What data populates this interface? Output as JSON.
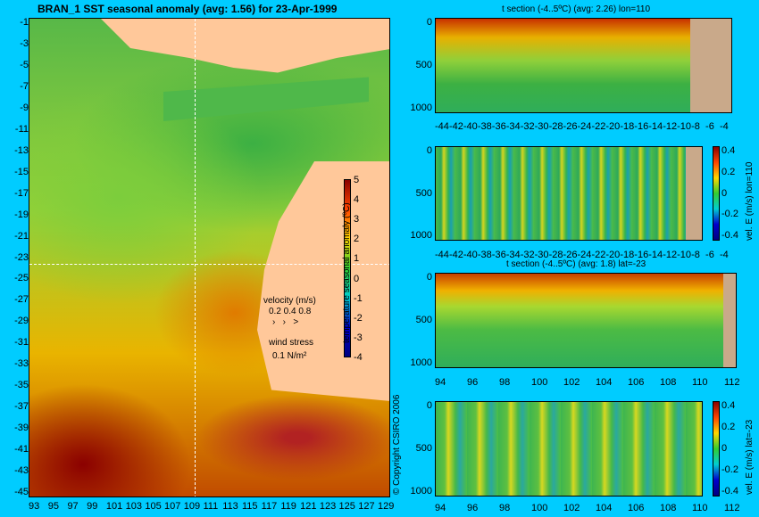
{
  "map": {
    "title": "BRAN_1 SST seasonal anomaly (avg: 1.56) for 23-Apr-1999",
    "lat_ticks": [
      "-1",
      "-3",
      "-5",
      "-7",
      "-9",
      "-11",
      "-13",
      "-15",
      "-17",
      "-19",
      "-21",
      "-23",
      "-25",
      "-27",
      "-29",
      "-31",
      "-33",
      "-35",
      "-37",
      "-39",
      "-41",
      "-43",
      "-45"
    ],
    "lon_ticks": [
      "93",
      "95",
      "97",
      "99",
      "101",
      "103",
      "105",
      "107",
      "109",
      "111",
      "113",
      "115",
      "117",
      "119",
      "121",
      "123",
      "125",
      "127",
      "129"
    ],
    "colorbar_ticks": [
      "5",
      "4",
      "3",
      "2",
      "1",
      "0",
      "-1",
      "-2",
      "-3",
      "-4"
    ],
    "colorbar_label": "temperature seasonal anomaly (ºC)",
    "velocity_label": "velocity (m/s)",
    "velocity_scale": "0.2 0.4 0.8",
    "wind_label": "wind stress",
    "wind_scale": "0.1 N/m²",
    "copyright": "© Copyright CSIRO 2006"
  },
  "panels": {
    "p1": {
      "title": "t section (-4..5ºC) (avg: 2.26) lon=110",
      "xticks": [
        "-44",
        "-42",
        "-40",
        "-38",
        "-36",
        "-34",
        "-32",
        "-30",
        "-28",
        "-26",
        "-24",
        "-22",
        "-20",
        "-18",
        "-16",
        "-14",
        "-12",
        "-10",
        "-8",
        "-6",
        "-4"
      ],
      "yticks": [
        "0",
        "500",
        "1000"
      ]
    },
    "p2": {
      "title": "",
      "xticks": [
        "-44",
        "-42",
        "-40",
        "-38",
        "-36",
        "-34",
        "-32",
        "-30",
        "-28",
        "-26",
        "-24",
        "-22",
        "-20",
        "-18",
        "-16",
        "-14",
        "-12",
        "-10",
        "-8",
        "-6",
        "-4"
      ],
      "yticks": [
        "0",
        "500",
        "1000"
      ],
      "cbar_ticks": [
        "0.4",
        "0.2",
        "0",
        "-0.2",
        "-0.4"
      ],
      "cbar_label": "vel. E (m/s) lon=110"
    },
    "p3": {
      "title": "t section (-4..5ºC) (avg: 1.8) lat=-23",
      "xticks": [
        "94",
        "96",
        "98",
        "100",
        "102",
        "104",
        "106",
        "108",
        "110",
        "112"
      ],
      "yticks": [
        "0",
        "500",
        "1000"
      ]
    },
    "p4": {
      "title": "",
      "xticks": [
        "94",
        "96",
        "98",
        "100",
        "102",
        "104",
        "106",
        "108",
        "110",
        "112"
      ],
      "yticks": [
        "0",
        "500",
        "1000"
      ],
      "cbar_ticks": [
        "0.4",
        "0.2",
        "0",
        "-0.2",
        "-0.4"
      ],
      "cbar_label": "vel. E (m/s) lat=-23"
    }
  }
}
